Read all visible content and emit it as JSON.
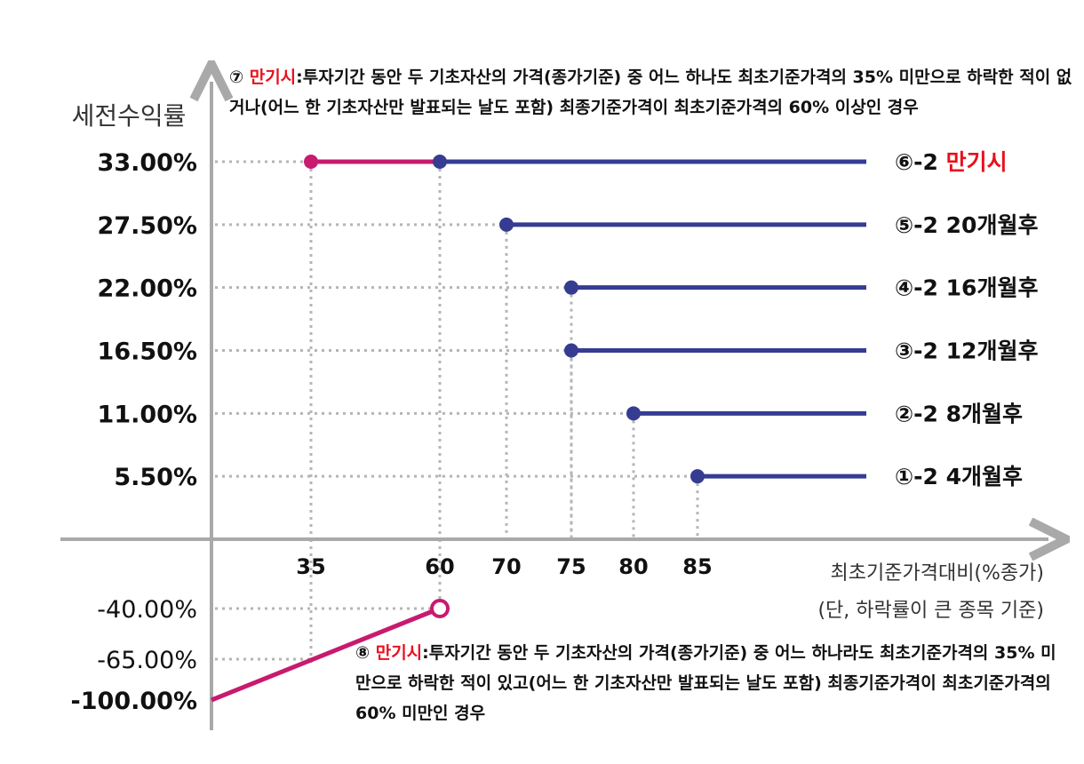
{
  "chart_data": {
    "type": "line",
    "ylabel": "세전수익률",
    "xlabel": "최초기준가격대비(%종가)",
    "xlabel_note": "(단, 하락률이 큰 종목 기준)",
    "x_ticks": [
      "35",
      "60",
      "70",
      "75",
      "80",
      "85"
    ],
    "y_tick_labels": [
      "33.00%",
      "27.50%",
      "22.00%",
      "16.50%",
      "11.00%",
      "5.50%",
      "-40.00%",
      "-65.00%",
      "-100.00%"
    ],
    "series": [
      {
        "label_num": "⑥-2",
        "label_text": "만기시",
        "label_red": true,
        "y": 33.0,
        "x_start": 60
      },
      {
        "label_num": "⑤-2",
        "label_text": "20개월후",
        "label_red": false,
        "y": 27.5,
        "x_start": 70
      },
      {
        "label_num": "④-2",
        "label_text": "16개월후",
        "label_red": false,
        "y": 22.0,
        "x_start": 75
      },
      {
        "label_num": "③-2",
        "label_text": "12개월후",
        "label_red": false,
        "y": 16.5,
        "x_start": 75
      },
      {
        "label_num": "②-2",
        "label_text": "8개월후",
        "label_red": false,
        "y": 11.0,
        "x_start": 80
      },
      {
        "label_num": "①-2",
        "label_text": "4개월후",
        "label_red": false,
        "y": 5.5,
        "x_start": 85
      }
    ],
    "maturity_high_segment": {
      "x": [
        35,
        60
      ],
      "y": 33.0
    },
    "maturity_loss_line": {
      "x": [
        0,
        60
      ],
      "y": [
        -100.0,
        -40.0
      ],
      "open_end": true
    },
    "colors": {
      "step_line": "#353c92",
      "maturity": "#c81a6e",
      "axis": "#a9a9a9",
      "guide": "#b5b5b5",
      "highlight": "#e8101e"
    }
  },
  "notes": {
    "top": {
      "num": "⑦",
      "highlight": "만기시",
      "text": ":투자기간 동안 두 기초자산의 가격(종가기준) 중 어느 하나도 최초기준가격의 35% 미만으로 하락한 적이 없거나(어느 한 기초자산만 발표되는 날도 포함) 최종기준가격이 최초기준가격의 60% 이상인 경우"
    },
    "bottom": {
      "num": "⑧",
      "highlight": "만기시",
      "text": ":투자기간 동안 두 기초자산의 가격(종가기준) 중 어느 하나라도 최초기준가격의 35% 미만으로 하락한 적이 있고(어느 한 기초자산만 발표되는 날도 포함) 최종기준가격이 최초기준가격의 60% 미만인 경우"
    }
  }
}
